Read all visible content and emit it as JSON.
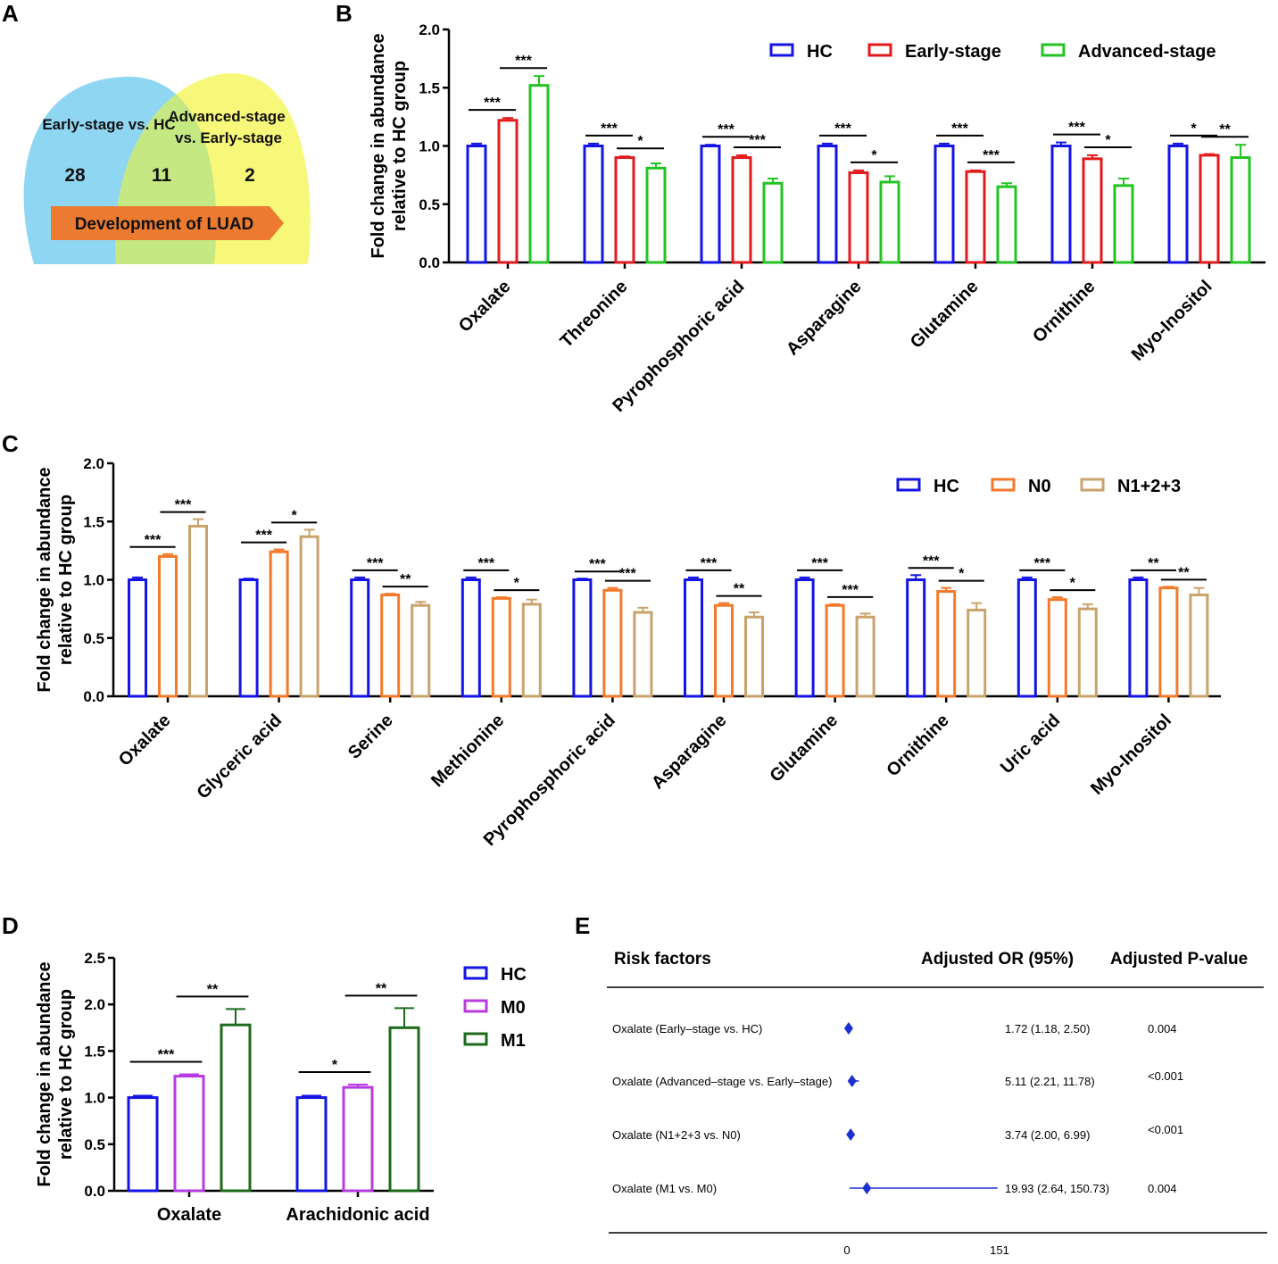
{
  "panels": {
    "a": "A",
    "b": "B",
    "c": "C",
    "d": "D",
    "e": "E"
  },
  "colors": {
    "hc": "#1414e6",
    "early": "#e31a1c",
    "advanced": "#22c322",
    "n0": "#f4792a",
    "n123": "#c9a36a",
    "m0": "#b73be0",
    "m1": "#1c6b1c",
    "venn_left": "#8fd6f3",
    "venn_right": "#f7f77a",
    "venn_overlap": "#c5e882",
    "arrow": "#ec7a30",
    "forest": "#1a30d0"
  },
  "venn": {
    "left_label": "Early-stage vs. HC",
    "right_label_line1": "Advanced-stage",
    "right_label_line2": "vs. Early-stage",
    "left_count": "28",
    "overlap_count": "11",
    "right_count": "2",
    "arrow_label": "Development of LUAD"
  },
  "chart_data": [
    {
      "panel": "B",
      "type": "bar",
      "ylabel_line1": "Fold change in abundance",
      "ylabel_line2": "relative to HC group",
      "ylim": [
        0,
        2.0
      ],
      "yticks": [
        "0.0",
        "0.5",
        "1.0",
        "1.5",
        "2.0"
      ],
      "categories": [
        "Oxalate",
        "Threonine",
        "Pyrophosphoric acid",
        "Asparagine",
        "Glutamine",
        "Ornithine",
        "Myo-Inositol"
      ],
      "series": [
        {
          "name": "HC",
          "values": [
            1.0,
            1.0,
            1.0,
            1.0,
            1.0,
            1.0,
            1.0
          ],
          "errors": [
            0.02,
            0.02,
            0.01,
            0.02,
            0.02,
            0.03,
            0.02
          ]
        },
        {
          "name": "Early-stage",
          "values": [
            1.22,
            0.9,
            0.9,
            0.77,
            0.78,
            0.89,
            0.92
          ],
          "errors": [
            0.02,
            0.01,
            0.02,
            0.02,
            0.01,
            0.03,
            0.01
          ]
        },
        {
          "name": "Advanced-stage",
          "values": [
            1.52,
            0.81,
            0.68,
            0.69,
            0.65,
            0.66,
            0.9
          ],
          "errors": [
            0.08,
            0.04,
            0.04,
            0.05,
            0.03,
            0.06,
            0.11
          ]
        }
      ],
      "significance": [
        [
          "***",
          "***"
        ],
        [
          "***",
          "*"
        ],
        [
          "***",
          "***"
        ],
        [
          "***",
          "*"
        ],
        [
          "***",
          "***"
        ],
        [
          "***",
          "*"
        ],
        [
          "*",
          "**"
        ]
      ]
    },
    {
      "panel": "C",
      "type": "bar",
      "ylabel_line1": "Fold change in abundance",
      "ylabel_line2": "relative to HC group",
      "ylim": [
        0,
        2.0
      ],
      "yticks": [
        "0.0",
        "0.5",
        "1.0",
        "1.5",
        "2.0"
      ],
      "categories": [
        "Oxalate",
        "Glyceric acid",
        "Serine",
        "Methionine",
        "Pyrophosphoric acid",
        "Asparagine",
        "Glutamine",
        "Ornithine",
        "Uric acid",
        "Myo-Inositol"
      ],
      "series": [
        {
          "name": "HC",
          "values": [
            1.0,
            1.0,
            1.0,
            1.0,
            1.0,
            1.0,
            1.0,
            1.0,
            1.0,
            1.0
          ],
          "errors": [
            0.02,
            0.01,
            0.02,
            0.02,
            0.01,
            0.02,
            0.02,
            0.04,
            0.02,
            0.02
          ]
        },
        {
          "name": "N0",
          "values": [
            1.2,
            1.24,
            0.87,
            0.84,
            0.91,
            0.78,
            0.78,
            0.9,
            0.83,
            0.93
          ],
          "errors": [
            0.02,
            0.02,
            0.01,
            0.01,
            0.02,
            0.02,
            0.01,
            0.03,
            0.02,
            0.01
          ]
        },
        {
          "name": "N1+2+3",
          "values": [
            1.46,
            1.37,
            0.78,
            0.79,
            0.72,
            0.68,
            0.68,
            0.74,
            0.75,
            0.87
          ],
          "errors": [
            0.06,
            0.06,
            0.03,
            0.04,
            0.04,
            0.04,
            0.03,
            0.06,
            0.04,
            0.06
          ]
        }
      ],
      "significance": [
        [
          "***",
          "***"
        ],
        [
          "***",
          "*"
        ],
        [
          "***",
          "**"
        ],
        [
          "***",
          "*"
        ],
        [
          "***",
          "***"
        ],
        [
          "***",
          "**"
        ],
        [
          "***",
          "***"
        ],
        [
          "***",
          "*"
        ],
        [
          "***",
          "*"
        ],
        [
          "**",
          "**"
        ]
      ]
    },
    {
      "panel": "D",
      "type": "bar",
      "ylabel_line1": "Fold change in abundance",
      "ylabel_line2": "relative to HC group",
      "ylim": [
        0,
        2.5
      ],
      "yticks": [
        "0.0",
        "0.5",
        "1.0",
        "1.5",
        "2.0",
        "2.5"
      ],
      "categories": [
        "Oxalate",
        "Arachidonic acid"
      ],
      "series": [
        {
          "name": "HC",
          "values": [
            1.0,
            1.0
          ],
          "errors": [
            0.02,
            0.02
          ]
        },
        {
          "name": "M0",
          "values": [
            1.23,
            1.11
          ],
          "errors": [
            0.02,
            0.03
          ]
        },
        {
          "name": "M1",
          "values": [
            1.78,
            1.75
          ],
          "errors": [
            0.17,
            0.21
          ]
        }
      ],
      "significance": [
        [
          "***",
          "**"
        ],
        [
          "*",
          "**"
        ]
      ]
    },
    {
      "panel": "E",
      "type": "forest",
      "headers": {
        "factor": "Risk factors",
        "or": "Adjusted OR (95%)",
        "p": "Adjusted P-value"
      },
      "axis_ticks": [
        "0",
        "151"
      ],
      "xlim": [
        0,
        151
      ],
      "rows": [
        {
          "factor": "Oxalate (Early–stage vs. HC)",
          "or": 1.72,
          "lo": 1.18,
          "hi": 2.5,
          "or_text": "1.72 (1.18, 2.50)",
          "p": "0.004"
        },
        {
          "factor": "Oxalate (Advanced–stage vs. Early–stage)",
          "or": 5.11,
          "lo": 2.21,
          "hi": 11.78,
          "or_text": "5.11 (2.21, 11.78)",
          "p": "<0.001"
        },
        {
          "factor": "Oxalate (N1+2+3 vs. N0)",
          "or": 3.74,
          "lo": 2.0,
          "hi": 6.99,
          "or_text": "3.74 (2.00, 6.99)",
          "p": "<0.001"
        },
        {
          "factor": "Oxalate (M1 vs. M0)",
          "or": 19.93,
          "lo": 2.64,
          "hi": 150.73,
          "or_text": "19.93 (2.64, 150.73)",
          "p": "0.004"
        }
      ]
    }
  ]
}
